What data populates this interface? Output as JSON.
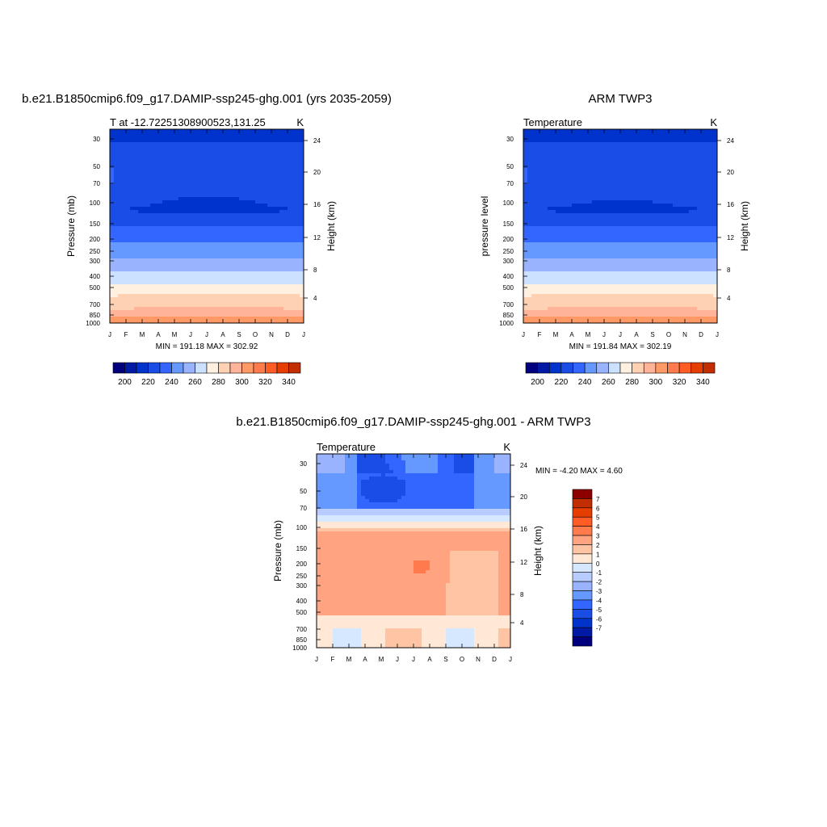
{
  "colors": {
    "abs_scale": [
      "#00007f",
      "#001aa6",
      "#0033cc",
      "#1a4de6",
      "#3366ff",
      "#6699ff",
      "#99b3ff",
      "#cce0ff",
      "#fff0e0",
      "#ffd1b3",
      "#ffb399",
      "#ff9966",
      "#ff7a4d",
      "#ff5c26",
      "#e63d00",
      "#c22e00",
      "#8c0000"
    ],
    "diff_scale": [
      "#00007f",
      "#001aa6",
      "#0033cc",
      "#1a4de6",
      "#3366ff",
      "#6699ff",
      "#99b3ff",
      "#b8ccff",
      "#d6e8ff",
      "#ffe8d6",
      "#ffc4a3",
      "#ffa380",
      "#ff7a4d",
      "#ff5c26",
      "#e63d00",
      "#c22e00",
      "#8c0000"
    ]
  },
  "chart_data": [
    {
      "type": "heatmap",
      "title": "b.e21.B1850cmip6.f09_g17.DAMIP-ssp245-ghg.001 (yrs 2035-2059)",
      "left_label": "T at -12.72251308900523,131.25",
      "right_label": "K",
      "ylabel": "Pressure (mb)",
      "ylabel_right": "Height (km)",
      "x_ticks": [
        "J",
        "F",
        "M",
        "A",
        "M",
        "J",
        "J",
        "A",
        "S",
        "O",
        "N",
        "D",
        "J"
      ],
      "y_ticks": [
        "30",
        "50",
        "70",
        "100",
        "150",
        "200",
        "250",
        "300",
        "400",
        "500",
        "700",
        "850",
        "1000"
      ],
      "y_ticks_right": [
        "24",
        "20",
        "16",
        "12",
        "8",
        "4"
      ],
      "info": "MIN = 191.18 MAX = 302.92",
      "colorbar_labels": [
        "200",
        "220",
        "240",
        "260",
        "280",
        "300",
        "320",
        "340"
      ],
      "z_range": [
        191.18,
        302.92
      ]
    },
    {
      "type": "heatmap",
      "title": "ARM TWP3",
      "left_label": "Temperature",
      "right_label": "K",
      "ylabel": "pressure level",
      "ylabel_right": "Height (km)",
      "x_ticks": [
        "J",
        "F",
        "M",
        "A",
        "M",
        "J",
        "J",
        "A",
        "S",
        "O",
        "N",
        "D",
        "J"
      ],
      "y_ticks": [
        "30",
        "50",
        "70",
        "100",
        "150",
        "200",
        "250",
        "300",
        "400",
        "500",
        "700",
        "850",
        "1000"
      ],
      "y_ticks_right": [
        "24",
        "20",
        "16",
        "12",
        "8",
        "4"
      ],
      "info": "MIN = 191.84 MAX = 302.19",
      "colorbar_labels": [
        "200",
        "220",
        "240",
        "260",
        "280",
        "300",
        "320",
        "340"
      ],
      "z_range": [
        191.84,
        302.19
      ]
    },
    {
      "type": "heatmap",
      "title": "b.e21.B1850cmip6.f09_g17.DAMIP-ssp245-ghg.001 - ARM TWP3",
      "left_label": "Temperature",
      "right_label": "K",
      "ylabel": "Pressure (mb)",
      "ylabel_right": "Height (km)",
      "x_ticks": [
        "J",
        "F",
        "M",
        "A",
        "M",
        "J",
        "J",
        "A",
        "S",
        "O",
        "N",
        "D",
        "J"
      ],
      "y_ticks": [
        "30",
        "50",
        "70",
        "100",
        "150",
        "200",
        "250",
        "300",
        "400",
        "500",
        "700",
        "850",
        "1000"
      ],
      "y_ticks_right": [
        "24",
        "20",
        "16",
        "12",
        "8",
        "4"
      ],
      "info": "MIN =  -4.20 MAX =   4.60",
      "colorbar_labels": [
        "7",
        "6",
        "5",
        "4",
        "3",
        "2",
        "1",
        "0",
        "-1",
        "-2",
        "-3",
        "-4",
        "-5",
        "-6",
        "-7"
      ],
      "z_range": [
        -4.2,
        4.6
      ]
    }
  ]
}
